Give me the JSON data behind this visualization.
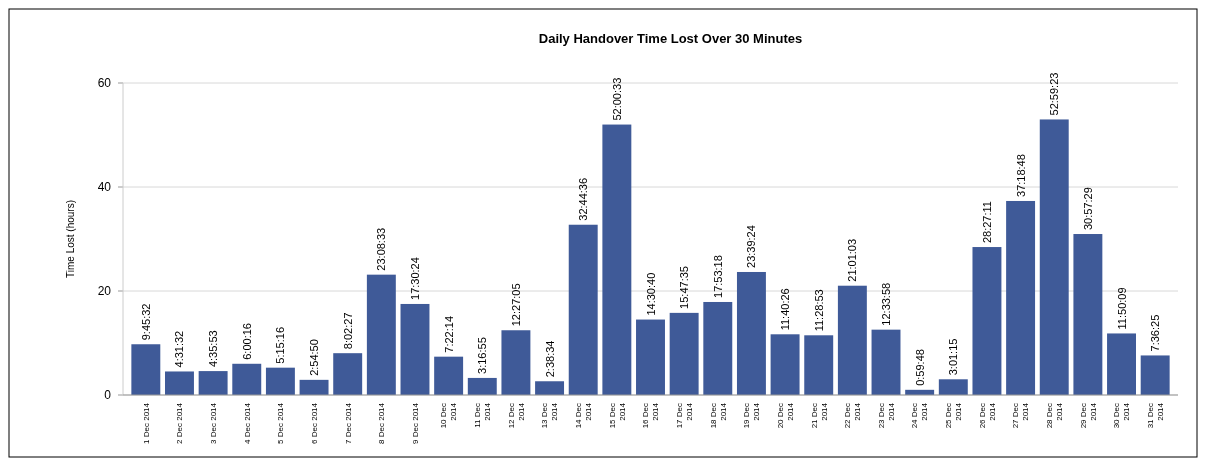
{
  "chart_data": {
    "type": "bar",
    "title": "Daily Handover Time Lost Over 30 Minutes",
    "ylabel": "Time Lost (hours)",
    "categories": [
      "1 Dec 2014",
      "2 Dec 2014",
      "3 Dec 2014",
      "4 Dec 2014",
      "5 Dec 2014",
      "6 Dec 2014",
      "7 Dec 2014",
      "8 Dec 2014",
      "9 Dec 2014",
      "10 Dec 2014",
      "11 Dec 2014",
      "12 Dec 2014",
      "13 Dec 2014",
      "14 Dec 2014",
      "15 Dec 2014",
      "16 Dec 2014",
      "17 Dec 2014",
      "18 Dec 2014",
      "19 Dec 2014",
      "20 Dec 2014",
      "21 Dec 2014",
      "22 Dec 2014",
      "23 Dec 2014",
      "24 Dec 2014",
      "25 Dec 2014",
      "26 Dec 2014",
      "27 Dec 2014",
      "28 Dec 2014",
      "29 Dec 2014",
      "30 Dec 2014",
      "31 Dec 2014"
    ],
    "values": [
      9.7589,
      4.5256,
      4.5981,
      6.0044,
      5.2544,
      2.9139,
      8.0408,
      23.1425,
      17.5067,
      7.3706,
      3.2819,
      12.4514,
      2.6428,
      32.7433,
      52.0092,
      14.5111,
      15.7931,
      17.8883,
      23.6567,
      11.6739,
      11.4814,
      21.0175,
      12.5661,
      0.9967,
      3.0208,
      28.4531,
      37.3133,
      52.9897,
      30.9581,
      11.8358,
      7.6069
    ],
    "value_labels": [
      "9:45:32",
      "4:31:32",
      "4:35:53",
      "6:00:16",
      "5:15:16",
      "2:54:50",
      "8:02:27",
      "23:08:33",
      "17:30:24",
      "7:22:14",
      "3:16:55",
      "12:27:05",
      "2:38:34",
      "32:44:36",
      "52:00:33",
      "14:30:40",
      "15:47:35",
      "17:53:18",
      "23:39:24",
      "11:40:26",
      "11:28:53",
      "21:01:03",
      "12:33:58",
      "0:59:48",
      "3:01:15",
      "28:27:11",
      "37:18:48",
      "52:59:23",
      "30:57:29",
      "11:50:09",
      "7:36:25"
    ],
    "color": "#3f5a98",
    "ylim": [
      0,
      60
    ],
    "yticks": [
      0,
      20,
      40,
      60
    ],
    "grid": "y"
  }
}
